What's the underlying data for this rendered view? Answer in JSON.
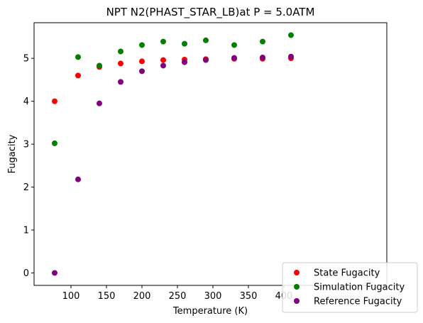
{
  "chart_data": {
    "type": "scatter",
    "title": "NPT N2(PHAST_STAR_LB)at P = 5.0ATM",
    "xlabel": "Temperature (K)",
    "ylabel": "Fugacity",
    "xlim": [
      48,
      545
    ],
    "ylim": [
      -0.29,
      5.83
    ],
    "xticks": [
      100,
      150,
      200,
      250,
      300,
      350,
      400
    ],
    "xtick_labels": [
      "100",
      "150",
      "200",
      "250",
      "300",
      "350",
      "400"
    ],
    "yticks": [
      0,
      1,
      2,
      3,
      4,
      5
    ],
    "ytick_labels": [
      "0",
      "1",
      "2",
      "3",
      "4",
      "5"
    ],
    "grid": false,
    "legend_position": "bottom-right",
    "series": [
      {
        "name": "State Fugacity",
        "color": "#ff0000",
        "x": [
          77,
          110,
          140,
          170,
          200,
          230,
          260,
          290,
          330,
          370,
          410
        ],
        "y": [
          4.0,
          4.6,
          4.8,
          4.88,
          4.93,
          4.96,
          4.97,
          4.98,
          4.99,
          4.99,
          5.0
        ]
      },
      {
        "name": "Simulation Fugacity",
        "color": "#008000",
        "x": [
          77,
          110,
          140,
          170,
          200,
          230,
          260,
          290,
          330,
          370,
          410
        ],
        "y": [
          3.02,
          5.03,
          4.83,
          5.16,
          5.31,
          5.39,
          5.34,
          5.42,
          5.31,
          5.39,
          5.54
        ]
      },
      {
        "name": "Reference Fugacity",
        "color": "#800080",
        "x": [
          77,
          110,
          140,
          170,
          200,
          230,
          260,
          290,
          330,
          370,
          410
        ],
        "y": [
          0.0,
          2.18,
          3.95,
          4.45,
          4.7,
          4.83,
          4.91,
          4.96,
          5.01,
          5.02,
          5.04
        ]
      }
    ]
  }
}
